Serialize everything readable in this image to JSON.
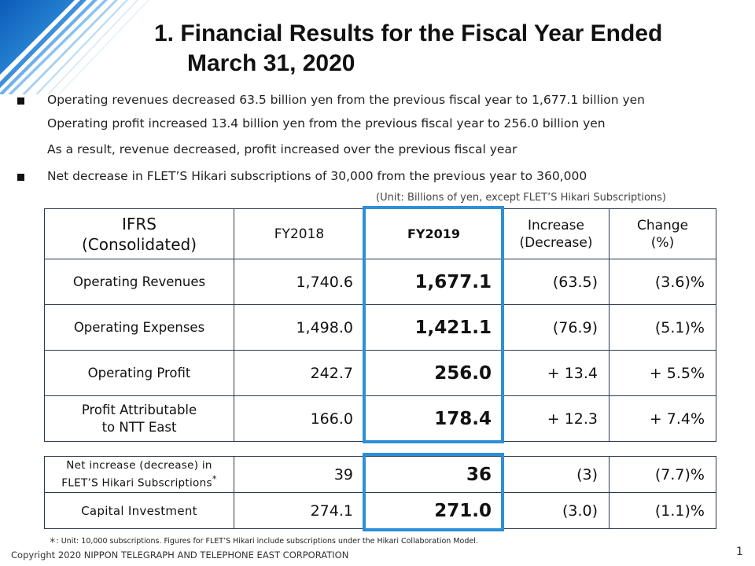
{
  "title": {
    "line1": "1. Financial Results for the Fiscal Year Ended",
    "line2": "March 31, 2020"
  },
  "bullets": [
    {
      "text": "Operating revenues decreased 63.5 billion yen from the previous fiscal year to 1,677.1 billion yen",
      "marker": true
    },
    {
      "text": "Operating profit increased 13.4 billion yen from the previous fiscal year to 256.0 billion yen",
      "marker": false
    },
    {
      "text": "As a result, revenue decreased, profit increased over the previous fiscal year",
      "marker": false
    },
    {
      "text": "Net decrease in FLET’S Hikari subscriptions of 30,000 from the previous year to 360,000",
      "marker": true
    }
  ],
  "unit_note": "(Unit: Billions of yen, except FLET’S Hikari Subscriptions)",
  "table": {
    "header": {
      "ifrs_line1": "IFRS",
      "ifrs_line2": "(Consolidated)",
      "fy2018": "FY2018",
      "fy2019": "FY2019",
      "increase_line1": "Increase",
      "increase_line2": "(Decrease)",
      "change_line1": "Change",
      "change_line2": "(%)"
    },
    "rows": [
      {
        "label1": "Operating Revenues",
        "label2": "",
        "fy2018": "1,740.6",
        "fy2019": "1,677.1",
        "increase": "(63.5)",
        "change": "(3.6)%"
      },
      {
        "label1": "Operating Expenses",
        "label2": "",
        "fy2018": "1,498.0",
        "fy2019": "1,421.1",
        "increase": "(76.9)",
        "change": "(5.1)%"
      },
      {
        "label1": "Operating Profit",
        "label2": "",
        "fy2018": "242.7",
        "fy2019": "256.0",
        "increase": "+ 13.4",
        "change": "+ 5.5%"
      },
      {
        "label1": "Profit Attributable",
        "label2": "to NTT East",
        "fy2018": "166.0",
        "fy2019": "178.4",
        "increase": "+ 12.3",
        "change": "+ 7.4%"
      }
    ]
  },
  "table2": {
    "rows": [
      {
        "label1": "Net increase (decrease) in",
        "label2": "FLET’S Hikari Subscriptions",
        "asterisk": "*",
        "fy2018": "39",
        "fy2019": "36",
        "increase": "(3)",
        "change": "(7.7)%"
      },
      {
        "label1": "Capital Investment",
        "label2": "",
        "asterisk": "",
        "fy2018": "274.1",
        "fy2019": "271.0",
        "increase": "(3.0)",
        "change": "(1.1)%"
      }
    ]
  },
  "footnote": "＊: Unit: 10,000 subscriptions. Figures for FLET’S Hikari include subscriptions under the Hikari Collaboration Model.",
  "copyright": "Copyright 2020 NIPPON TELEGRAPH AND TELEPHONE EAST CORPORATION",
  "page_number": "1",
  "colors": {
    "highlight": "#2e8fd6",
    "border": "#2b3a4f",
    "decor_blue": "#1a6fc9"
  }
}
